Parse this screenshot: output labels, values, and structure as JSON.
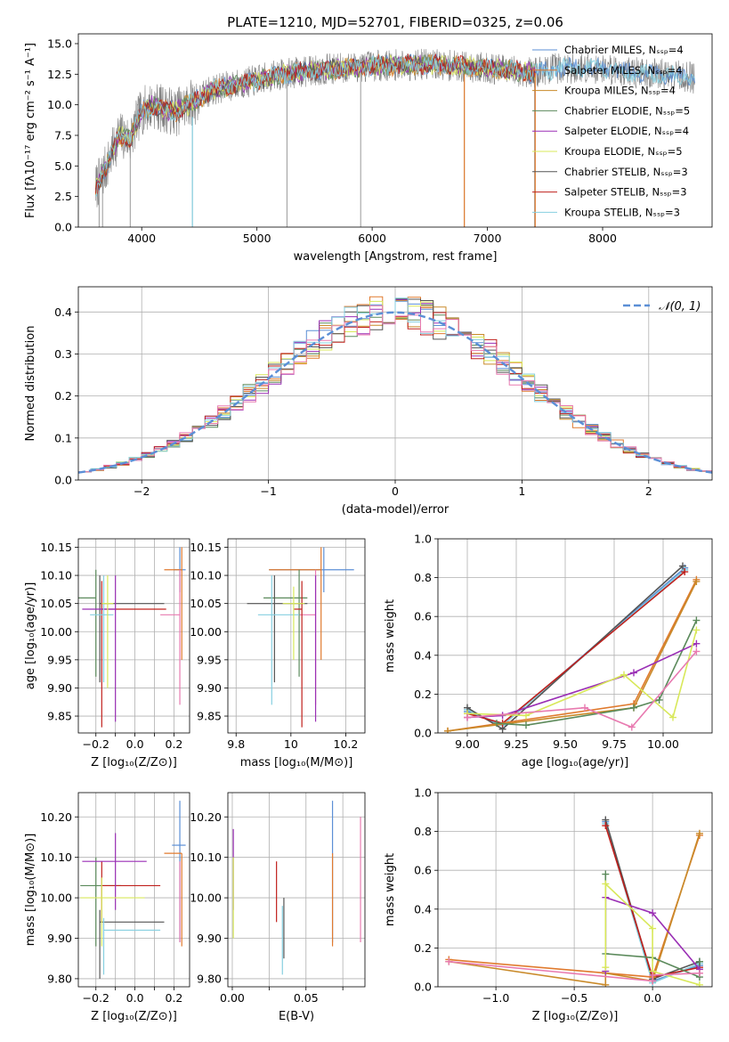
{
  "chart_data": [
    {
      "type": "line",
      "title": "PLATE=1210, MJD=52701, FIBERID=0325, z=0.06",
      "xlabel": "wavelength [Angstrom, rest frame]",
      "ylabel": "Flux [fλ10⁻¹⁷ erg cm⁻² s⁻¹ A⁻¹]",
      "xlim": [
        3450,
        8950
      ],
      "ylim": [
        0,
        15.8
      ],
      "xticks": [
        4000,
        5000,
        6000,
        7000,
        8000
      ],
      "yticks": [
        0.0,
        2.5,
        5.0,
        7.5,
        10.0,
        12.5,
        15.0
      ],
      "grid": false,
      "legend": "upper-right",
      "series": [
        {
          "name": "Chabrier MILES, N_SSP=4",
          "color": "#5b8fd6"
        },
        {
          "name": "Salpeter MILES, N_SSP=4",
          "color": "#e07a2e"
        },
        {
          "name": "Kroupa MILES, N_SSP=4",
          "color": "#c98a2a"
        },
        {
          "name": "Chabrier ELODIE, N_SSP=5",
          "color": "#5b8a5b"
        },
        {
          "name": "Salpeter ELODIE, N_SSP=4",
          "color": "#9a2fb5"
        },
        {
          "name": "Kroupa ELODIE, N_SSP=5",
          "color": "#d8e85a"
        },
        {
          "name": "Chabrier STELIB, N_SSP=3",
          "color": "#555555"
        },
        {
          "name": "Salpeter STELIB, N_SSP=3",
          "color": "#c0201c"
        },
        {
          "name": "Kroupa STELIB, N_SSP=3",
          "color": "#86cfe0"
        }
      ],
      "data_color": "#808080",
      "continuum": {
        "x": [
          3600,
          3700,
          3800,
          3900,
          4000,
          4100,
          4200,
          4300,
          4400,
          4500,
          4600,
          4800,
          5000,
          5200,
          5500,
          6000,
          6500,
          7000,
          7200,
          7400,
          7600,
          8000,
          8300,
          8500,
          8800
        ],
        "y": [
          3.2,
          5.0,
          7.5,
          7.2,
          9.5,
          10.0,
          9.6,
          9.4,
          10.0,
          10.5,
          11.2,
          11.6,
          12.0,
          12.5,
          12.8,
          13.2,
          13.3,
          13.0,
          12.8,
          12.6,
          13.0,
          13.0,
          12.6,
          12.5,
          12.2
        ]
      }
    },
    {
      "type": "line",
      "xlabel": "(data-model)/error",
      "ylabel": "Normed distribution",
      "xlim": [
        -2.5,
        2.5
      ],
      "ylim": [
        0,
        0.46
      ],
      "xticks": [
        -2,
        -1,
        0,
        1,
        2
      ],
      "yticks": [
        0.0,
        0.1,
        0.2,
        0.3,
        0.4
      ],
      "grid": true,
      "legend": "upper-right",
      "gaussian": {
        "name": "𝒩(0, 1)",
        "mu": 0,
        "sigma": 1,
        "color": "#5b8fd6"
      },
      "hist_bin_width": 0.1,
      "hist_colors": [
        "#5b8fd6",
        "#e07a2e",
        "#c98a2a",
        "#5b8a5b",
        "#9a2fb5",
        "#d8e85a",
        "#555555",
        "#c0201c",
        "#86cfe0",
        "#e87ab0"
      ]
    },
    {
      "type": "scatter",
      "xlabel": "Z [log₁₀(Z/Z⊙)]",
      "ylabel": "age  [log₁₀(age/yr)]",
      "xlim": [
        -0.29,
        0.28
      ],
      "ylim": [
        9.82,
        10.165
      ],
      "xticks": [
        -0.2,
        -0.1,
        0.0,
        0.1,
        0.2
      ],
      "xtick_labels": [
        "",
        "−0.2",
        "",
        "0.0",
        "",
        "0.2"
      ],
      "yticks": [
        9.85,
        9.9,
        9.95,
        10.0,
        10.05,
        10.1,
        10.15
      ],
      "grid": true,
      "points": [
        {
          "x": 0.23,
          "y": 10.11,
          "xe": [
            0.03,
            0.03
          ],
          "ye": [
            0.04,
            0.04
          ],
          "color": "#5b8fd6"
        },
        {
          "x": 0.24,
          "y": 10.11,
          "xe": [
            0.09,
            0.0
          ],
          "ye": [
            0.16,
            0.04
          ],
          "color": "#e07a2e"
        },
        {
          "x": 0.23,
          "y": 10.03,
          "xe": [
            0.1,
            0.0
          ],
          "ye": [
            0.16,
            0.08
          ],
          "color": "#e87ab0"
        },
        {
          "x": -0.2,
          "y": 10.06,
          "xe": [
            0.1,
            0.0
          ],
          "ye": [
            0.14,
            0.05
          ],
          "color": "#5b8a5b"
        },
        {
          "x": -0.18,
          "y": 10.05,
          "xe": [
            0.0,
            0.33
          ],
          "ye": [
            0.14,
            0.05
          ],
          "color": "#555555"
        },
        {
          "x": -0.17,
          "y": 10.04,
          "xe": [
            0.0,
            0.33
          ],
          "ye": [
            0.21,
            0.05
          ],
          "color": "#c0201c"
        },
        {
          "x": -0.1,
          "y": 10.04,
          "xe": [
            0.17,
            0.0
          ],
          "ye": [
            0.2,
            0.06
          ],
          "color": "#9a2fb5"
        },
        {
          "x": -0.16,
          "y": 10.03,
          "xe": [
            0.07,
            0.05
          ],
          "ye": [
            0.12,
            0.07
          ],
          "color": "#86cfe0"
        },
        {
          "x": -0.14,
          "y": 10.05,
          "xe": [
            0.03,
            0.03
          ],
          "ye": [
            0.15,
            0.05
          ],
          "color": "#d8e85a"
        }
      ]
    },
    {
      "type": "scatter",
      "xlabel": "mass [log₁₀(M/M⊙)]",
      "xlim": [
        9.77,
        10.27
      ],
      "ylim": [
        9.82,
        10.165
      ],
      "xticks": [
        9.8,
        10.0,
        10.2
      ],
      "yticks": [
        9.85,
        9.9,
        9.95,
        10.0,
        10.05,
        10.1,
        10.15
      ],
      "grid": true,
      "points": [
        {
          "x": 10.12,
          "y": 10.11,
          "xe": [
            0.2,
            0.11
          ],
          "ye": [
            0.04,
            0.04
          ],
          "color": "#5b8fd6"
        },
        {
          "x": 10.11,
          "y": 10.11,
          "xe": [
            0.19,
            0.0
          ],
          "ye": [
            0.16,
            0.04
          ],
          "color": "#e07a2e"
        },
        {
          "x": 10.09,
          "y": 10.03,
          "xe": [
            0.06,
            0.0
          ],
          "ye": [
            0.16,
            0.08
          ],
          "color": "#e87ab0"
        },
        {
          "x": 10.03,
          "y": 10.06,
          "xe": [
            0.13,
            0.03
          ],
          "ye": [
            0.14,
            0.05
          ],
          "color": "#5b8a5b"
        },
        {
          "x": 9.94,
          "y": 10.05,
          "xe": [
            0.1,
            0.12
          ],
          "ye": [
            0.14,
            0.05
          ],
          "color": "#555555"
        },
        {
          "x": 10.04,
          "y": 10.04,
          "xe": [
            0.03,
            0.0
          ],
          "ye": [
            0.21,
            0.05
          ],
          "color": "#c0201c"
        },
        {
          "x": 10.09,
          "y": 10.04,
          "xe": [
            0.0,
            0.0
          ],
          "ye": [
            0.2,
            0.06
          ],
          "color": "#9a2fb5"
        },
        {
          "x": 9.93,
          "y": 10.03,
          "xe": [
            0.05,
            0.1
          ],
          "ye": [
            0.16,
            0.07
          ],
          "color": "#86cfe0"
        },
        {
          "x": 10.01,
          "y": 10.05,
          "xe": [
            0.04,
            0.04
          ],
          "ye": [
            0.1,
            0.03
          ],
          "color": "#d8e85a"
        }
      ]
    },
    {
      "type": "line",
      "xlabel": "age  [log₁₀(age/yr)]",
      "ylabel": "mass weight",
      "xlim": [
        8.85,
        10.25
      ],
      "ylim": [
        0.0,
        1.0
      ],
      "xticks": [
        9.0,
        9.25,
        9.5,
        9.75,
        10.0
      ],
      "xtick_labels": [
        "9.00",
        "9.25",
        "9.50",
        "9.75",
        "10.00"
      ],
      "yticks": [
        0.0,
        0.2,
        0.4,
        0.6,
        0.8,
        1.0
      ],
      "grid": true,
      "series": [
        {
          "color": "#5b8fd6",
          "x": [
            9.0,
            9.18,
            10.11
          ],
          "y": [
            0.11,
            0.04,
            0.85
          ]
        },
        {
          "color": "#86cfe0",
          "x": [
            9.0,
            9.18,
            10.11
          ],
          "y": [
            0.12,
            0.04,
            0.84
          ]
        },
        {
          "color": "#555555",
          "x": [
            9.0,
            9.18,
            10.1
          ],
          "y": [
            0.13,
            0.02,
            0.86
          ]
        },
        {
          "color": "#c0201c",
          "x": [
            9.0,
            9.18,
            10.11
          ],
          "y": [
            0.1,
            0.05,
            0.83
          ]
        },
        {
          "color": "#e07a2e",
          "x": [
            8.9,
            9.85,
            10.17
          ],
          "y": [
            0.01,
            0.15,
            0.79
          ]
        },
        {
          "color": "#c98a2a",
          "x": [
            8.9,
            9.85,
            10.17
          ],
          "y": [
            0.01,
            0.13,
            0.78
          ]
        },
        {
          "color": "#5b8a5b",
          "x": [
            9.15,
            9.3,
            9.85,
            9.98,
            10.17
          ],
          "y": [
            0.05,
            0.04,
            0.13,
            0.17,
            0.58
          ]
        },
        {
          "color": "#9a2fb5",
          "x": [
            9.0,
            9.18,
            9.85,
            10.17
          ],
          "y": [
            0.08,
            0.09,
            0.31,
            0.46
          ]
        },
        {
          "color": "#d8e85a",
          "x": [
            9.0,
            9.3,
            9.8,
            10.05,
            10.17
          ],
          "y": [
            0.1,
            0.09,
            0.3,
            0.08,
            0.53
          ]
        },
        {
          "color": "#e87ab0",
          "x": [
            9.0,
            9.6,
            9.84,
            10.17
          ],
          "y": [
            0.08,
            0.13,
            0.03,
            0.42
          ]
        }
      ]
    },
    {
      "type": "scatter",
      "xlabel": "Z [log₁₀(Z/Z⊙)]",
      "ylabel": "mass [log₁₀(M/M⊙)]",
      "xlim": [
        -0.29,
        0.28
      ],
      "ylim": [
        9.78,
        10.26
      ],
      "xticks": [
        -0.2,
        -0.1,
        0.0,
        0.1,
        0.2
      ],
      "xtick_labels": [
        "",
        "−0.2",
        "",
        "0.0",
        "",
        "0.2"
      ],
      "yticks": [
        9.8,
        9.9,
        10.0,
        10.1,
        10.2
      ],
      "grid": true,
      "points": [
        {
          "x": 0.23,
          "y": 10.13,
          "xe": [
            0.04,
            0.03
          ],
          "ye": [
            0.24,
            0.11
          ],
          "color": "#5b8fd6"
        },
        {
          "x": 0.24,
          "y": 10.11,
          "xe": [
            0.09,
            0.0
          ],
          "ye": [
            0.23,
            0.0
          ],
          "color": "#e07a2e"
        },
        {
          "x": 0.23,
          "y": 10.09,
          "xe": [
            0.0,
            0.0
          ],
          "ye": [
            0.2,
            0.0
          ],
          "color": "#e87ab0"
        },
        {
          "x": -0.2,
          "y": 10.03,
          "xe": [
            0.08,
            0.13
          ],
          "ye": [
            0.15,
            0.07
          ],
          "color": "#5b8a5b"
        },
        {
          "x": -0.18,
          "y": 9.94,
          "xe": [
            0.0,
            0.33
          ],
          "ye": [
            0.14,
            0.03
          ],
          "color": "#555555"
        },
        {
          "x": -0.17,
          "y": 10.03,
          "xe": [
            0.0,
            0.3
          ],
          "ye": [
            0.09,
            0.06
          ],
          "color": "#c0201c"
        },
        {
          "x": -0.1,
          "y": 10.09,
          "xe": [
            0.17,
            0.16
          ],
          "ye": [
            0.12,
            0.07
          ],
          "color": "#9a2fb5"
        },
        {
          "x": -0.16,
          "y": 9.92,
          "xe": [
            0.0,
            0.29
          ],
          "ye": [
            0.11,
            0.03
          ],
          "color": "#86cfe0"
        },
        {
          "x": -0.17,
          "y": 10.0,
          "xe": [
            0.11,
            0.22
          ],
          "ye": [
            0.12,
            0.05
          ],
          "color": "#d8e85a"
        }
      ]
    },
    {
      "type": "scatter",
      "xlabel": "E(B-V)",
      "xlim": [
        -0.003,
        0.09
      ],
      "ylim": [
        9.78,
        10.26
      ],
      "xticks": [
        0.0,
        0.025,
        0.05,
        0.075
      ],
      "xtick_labels": [
        "0.00",
        "",
        "0.05",
        ""
      ],
      "yticks": [
        9.8,
        9.9,
        10.0,
        10.1,
        10.2
      ],
      "grid": true,
      "points": [
        {
          "x": 0.068,
          "y": 10.13,
          "xe": [
            0,
            0
          ],
          "ye": [
            0.24,
            0.11
          ],
          "color": "#5b8fd6"
        },
        {
          "x": 0.068,
          "y": 10.11,
          "xe": [
            0,
            0
          ],
          "ye": [
            0.23,
            0.0
          ],
          "color": "#e07a2e"
        },
        {
          "x": 0.087,
          "y": 10.09,
          "xe": [
            0,
            0
          ],
          "ye": [
            0.2,
            0.11
          ],
          "color": "#e87ab0"
        },
        {
          "x": 0.035,
          "y": 10.0,
          "xe": [
            0,
            0
          ],
          "ye": [
            0.15,
            0.0
          ],
          "color": "#555555"
        },
        {
          "x": 0.03,
          "y": 10.03,
          "xe": [
            0,
            0
          ],
          "ye": [
            0.09,
            0.06
          ],
          "color": "#c0201c"
        },
        {
          "x": 0.034,
          "y": 9.92,
          "xe": [
            0,
            0
          ],
          "ye": [
            0.11,
            0.06
          ],
          "color": "#86cfe0"
        },
        {
          "x": 0.0007,
          "y": 10.09,
          "xe": [
            0,
            0
          ],
          "ye": [
            0.12,
            0.08
          ],
          "color": "#9a2fb5"
        },
        {
          "x": 0.0007,
          "y": 10.0,
          "xe": [
            0,
            0
          ],
          "ye": [
            0.1,
            0.1
          ],
          "color": "#d8e85a"
        }
      ]
    },
    {
      "type": "line",
      "xlabel": "Z [log₁₀(Z/Z⊙)]",
      "ylabel": "mass weight",
      "xlim": [
        -1.37,
        0.38
      ],
      "ylim": [
        0.0,
        1.0
      ],
      "xticks": [
        -1.0,
        -0.5,
        0.0
      ],
      "xtick_labels": [
        "−1.0",
        "−0.5",
        "0.0"
      ],
      "yticks": [
        0.0,
        0.2,
        0.4,
        0.6,
        0.8,
        1.0
      ],
      "grid": true,
      "series": [
        {
          "color": "#5b8fd6",
          "x": [
            -0.3,
            0.0,
            0.3
          ],
          "y": [
            0.85,
            0.03,
            0.11
          ]
        },
        {
          "color": "#86cfe0",
          "x": [
            -0.3,
            0.0,
            0.3
          ],
          "y": [
            0.84,
            0.02,
            0.12
          ]
        },
        {
          "color": "#555555",
          "x": [
            -0.3,
            0.0,
            0.3
          ],
          "y": [
            0.86,
            0.04,
            0.13
          ]
        },
        {
          "color": "#c0201c",
          "x": [
            -0.3,
            0.0,
            0.3
          ],
          "y": [
            0.83,
            0.05,
            0.1
          ]
        },
        {
          "color": "#e07a2e",
          "x": [
            -1.3,
            0.0,
            0.3
          ],
          "y": [
            0.14,
            0.05,
            0.78
          ]
        },
        {
          "color": "#c98a2a",
          "x": [
            -1.3,
            -0.3,
            -0.3,
            0.0,
            0.3
          ],
          "y": [
            0.13,
            0.01,
            0.07,
            0.03,
            0.79
          ]
        },
        {
          "color": "#5b8a5b",
          "x": [
            -0.3,
            -0.3,
            0.0,
            0.3,
            0.3
          ],
          "y": [
            0.58,
            0.17,
            0.15,
            0.05,
            0.13
          ]
        },
        {
          "color": "#9a2fb5",
          "x": [
            -0.3,
            -0.3,
            0.0,
            0.3
          ],
          "y": [
            0.08,
            0.46,
            0.38,
            0.09
          ]
        },
        {
          "color": "#d8e85a",
          "x": [
            -0.3,
            -0.3,
            0.0,
            0.0,
            0.3
          ],
          "y": [
            0.1,
            0.53,
            0.3,
            0.08,
            0.01
          ]
        },
        {
          "color": "#e87ab0",
          "x": [
            -1.3,
            0.0,
            0.0,
            0.3
          ],
          "y": [
            0.13,
            0.03,
            0.06,
            0.07
          ]
        }
      ]
    }
  ]
}
